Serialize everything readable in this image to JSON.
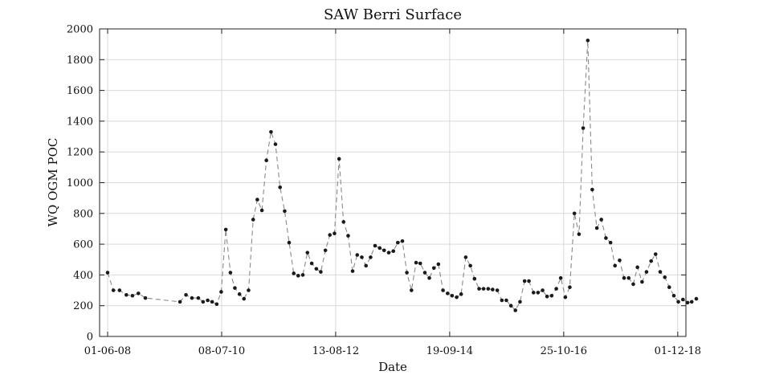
{
  "chart_data": {
    "type": "line",
    "title": "SAW Berri Surface",
    "xlabel": "Date",
    "ylabel": "WQ OGM POC",
    "ylim": [
      0,
      2000
    ],
    "yticks": [
      0,
      200,
      400,
      600,
      800,
      1000,
      1200,
      1400,
      1600,
      1800,
      2000
    ],
    "xlim": [
      "2008-04-08",
      "2019-01-25"
    ],
    "xticks": [
      {
        "date": "2008-06-01",
        "label": "01-06-08"
      },
      {
        "date": "2010-07-08",
        "label": "08-07-10"
      },
      {
        "date": "2012-08-13",
        "label": "13-08-12"
      },
      {
        "date": "2014-09-19",
        "label": "19-09-14"
      },
      {
        "date": "2016-10-25",
        "label": "25-10-16"
      },
      {
        "date": "2018-12-01",
        "label": "01-12-18"
      }
    ],
    "grid": true,
    "series": [
      {
        "color": "#1a1a1a",
        "line_color": "#8a8a8a",
        "points": [
          [
            "2008-06-01",
            415
          ],
          [
            "2008-07-10",
            300
          ],
          [
            "2008-08-20",
            300
          ],
          [
            "2008-10-05",
            270
          ],
          [
            "2008-11-15",
            265
          ],
          [
            "2008-12-25",
            280
          ],
          [
            "2009-02-10",
            250
          ],
          [
            "2009-10-01",
            225
          ],
          [
            "2009-11-10",
            270
          ],
          [
            "2009-12-20",
            250
          ],
          [
            "2010-02-01",
            250
          ],
          [
            "2010-03-05",
            225
          ],
          [
            "2010-04-05",
            235
          ],
          [
            "2010-05-05",
            225
          ],
          [
            "2010-06-05",
            210
          ],
          [
            "2010-07-05",
            290
          ],
          [
            "2010-08-05",
            695
          ],
          [
            "2010-09-05",
            415
          ],
          [
            "2010-10-05",
            315
          ],
          [
            "2010-11-05",
            275
          ],
          [
            "2010-12-05",
            245
          ],
          [
            "2011-01-05",
            300
          ],
          [
            "2011-02-05",
            760
          ],
          [
            "2011-03-05",
            890
          ],
          [
            "2011-04-05",
            820
          ],
          [
            "2011-05-05",
            1145
          ],
          [
            "2011-06-05",
            1330
          ],
          [
            "2011-07-05",
            1250
          ],
          [
            "2011-08-05",
            970
          ],
          [
            "2011-09-05",
            815
          ],
          [
            "2011-10-05",
            610
          ],
          [
            "2011-11-05",
            410
          ],
          [
            "2011-12-05",
            395
          ],
          [
            "2012-01-05",
            400
          ],
          [
            "2012-02-05",
            545
          ],
          [
            "2012-03-05",
            475
          ],
          [
            "2012-04-05",
            440
          ],
          [
            "2012-05-05",
            420
          ],
          [
            "2012-06-05",
            560
          ],
          [
            "2012-07-05",
            660
          ],
          [
            "2012-08-05",
            670
          ],
          [
            "2012-09-05",
            1155
          ],
          [
            "2012-10-05",
            745
          ],
          [
            "2012-11-05",
            655
          ],
          [
            "2012-12-05",
            425
          ],
          [
            "2013-01-05",
            530
          ],
          [
            "2013-02-05",
            515
          ],
          [
            "2013-03-05",
            460
          ],
          [
            "2013-04-05",
            515
          ],
          [
            "2013-05-05",
            590
          ],
          [
            "2013-06-05",
            575
          ],
          [
            "2013-07-05",
            560
          ],
          [
            "2013-08-05",
            545
          ],
          [
            "2013-09-05",
            555
          ],
          [
            "2013-10-05",
            610
          ],
          [
            "2013-11-05",
            620
          ],
          [
            "2013-12-05",
            415
          ],
          [
            "2014-01-05",
            300
          ],
          [
            "2014-02-05",
            480
          ],
          [
            "2014-03-05",
            475
          ],
          [
            "2014-04-05",
            415
          ],
          [
            "2014-05-05",
            380
          ],
          [
            "2014-06-05",
            445
          ],
          [
            "2014-07-05",
            470
          ],
          [
            "2014-08-05",
            300
          ],
          [
            "2014-09-05",
            280
          ],
          [
            "2014-10-05",
            265
          ],
          [
            "2014-11-05",
            255
          ],
          [
            "2014-12-05",
            275
          ],
          [
            "2015-01-05",
            515
          ],
          [
            "2015-02-05",
            460
          ],
          [
            "2015-03-05",
            375
          ],
          [
            "2015-04-05",
            310
          ],
          [
            "2015-05-05",
            310
          ],
          [
            "2015-06-05",
            310
          ],
          [
            "2015-07-05",
            305
          ],
          [
            "2015-08-05",
            300
          ],
          [
            "2015-09-05",
            235
          ],
          [
            "2015-10-05",
            235
          ],
          [
            "2015-11-05",
            200
          ],
          [
            "2015-12-05",
            170
          ],
          [
            "2016-01-05",
            225
          ],
          [
            "2016-02-05",
            360
          ],
          [
            "2016-03-05",
            360
          ],
          [
            "2016-04-05",
            285
          ],
          [
            "2016-05-05",
            285
          ],
          [
            "2016-06-05",
            300
          ],
          [
            "2016-07-05",
            260
          ],
          [
            "2016-08-05",
            265
          ],
          [
            "2016-09-05",
            310
          ],
          [
            "2016-10-05",
            380
          ],
          [
            "2016-11-05",
            255
          ],
          [
            "2016-12-05",
            320
          ],
          [
            "2017-01-05",
            800
          ],
          [
            "2017-02-05",
            665
          ],
          [
            "2017-03-05",
            1355
          ],
          [
            "2017-04-05",
            1925
          ],
          [
            "2017-05-05",
            955
          ],
          [
            "2017-06-05",
            705
          ],
          [
            "2017-07-05",
            760
          ],
          [
            "2017-08-05",
            640
          ],
          [
            "2017-09-05",
            610
          ],
          [
            "2017-10-05",
            460
          ],
          [
            "2017-11-05",
            495
          ],
          [
            "2017-12-05",
            380
          ],
          [
            "2018-01-05",
            380
          ],
          [
            "2018-02-05",
            340
          ],
          [
            "2018-03-05",
            450
          ],
          [
            "2018-04-05",
            355
          ],
          [
            "2018-05-05",
            420
          ],
          [
            "2018-06-05",
            490
          ],
          [
            "2018-07-05",
            535
          ],
          [
            "2018-08-05",
            420
          ],
          [
            "2018-09-05",
            385
          ],
          [
            "2018-10-05",
            320
          ],
          [
            "2018-11-05",
            265
          ],
          [
            "2018-12-05",
            225
          ],
          [
            "2019-01-05",
            240
          ],
          [
            "2019-02-05",
            220
          ],
          [
            "2019-03-05",
            225
          ],
          [
            "2019-04-05",
            245
          ]
        ]
      }
    ]
  }
}
